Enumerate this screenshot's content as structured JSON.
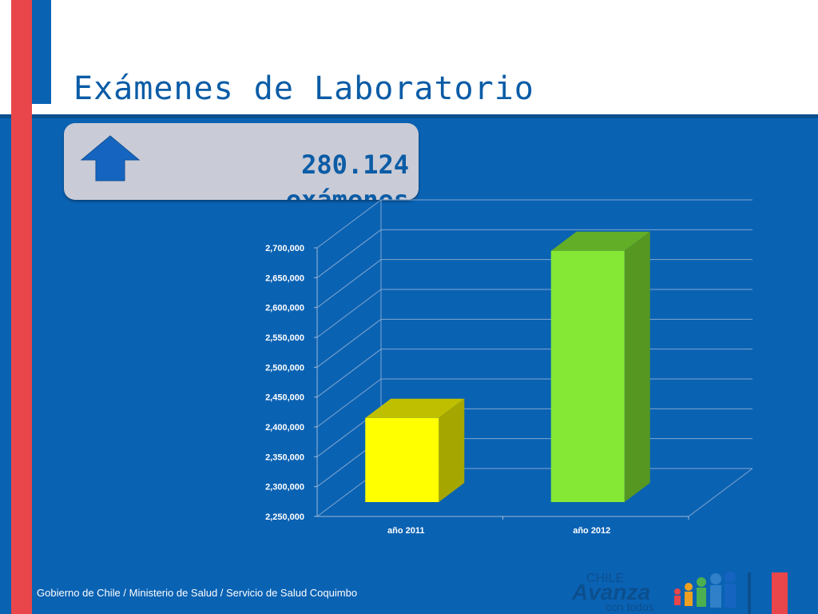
{
  "slide": {
    "title": "Exámenes de Laboratorio",
    "callout_value": "280.124",
    "callout_label": "exámenes",
    "footer": "Gobierno de Chile / Ministerio de Salud / Servicio de Salud Coquimbo",
    "logo_line1": "CHILE",
    "logo_line2": "Avanza",
    "logo_line3": "con todos"
  },
  "colors": {
    "background": "#0a62b3",
    "accent_red": "#e8464a",
    "title_blue": "#0b5ca6"
  },
  "chart_data": {
    "type": "bar",
    "categories": [
      "año 2011",
      "año 2012"
    ],
    "series": [
      {
        "values": [
          2415000,
          2695000
        ],
        "colors": [
          "#ffff00",
          "#84e834"
        ]
      }
    ],
    "ylim": [
      2250000,
      2700000
    ],
    "yticks": [
      2250000,
      2300000,
      2350000,
      2400000,
      2450000,
      2500000,
      2550000,
      2600000,
      2650000,
      2700000
    ],
    "ytick_labels": [
      "2,250,000",
      "2,300,000",
      "2,350,000",
      "2,400,000",
      "2,450,000",
      "2,500,000",
      "2,550,000",
      "2,600,000",
      "2,650,000",
      "2,700,000"
    ],
    "grid": true,
    "legend": "none"
  }
}
